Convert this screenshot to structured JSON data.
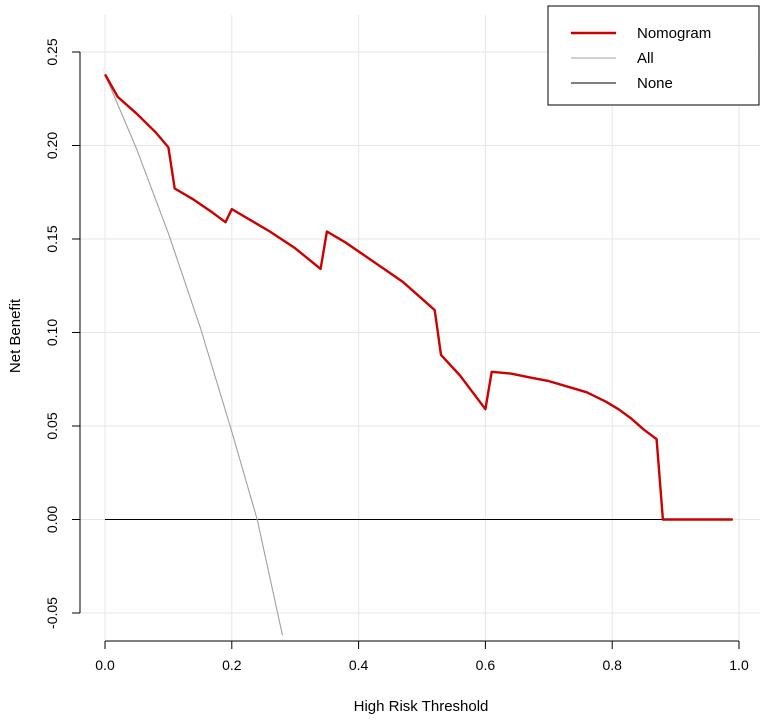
{
  "chart_data": {
    "type": "line",
    "xlabel": "High Risk Threshold",
    "ylabel": "Net Benefit",
    "xlim": [
      0.0,
      1.0
    ],
    "ylim": [
      -0.05,
      0.25
    ],
    "grid": true,
    "legend_position": "top-right",
    "x_ticks": [
      "0.0",
      "0.2",
      "0.4",
      "0.6",
      "0.8",
      "1.0"
    ],
    "y_ticks": [
      "-0.05",
      "0.00",
      "0.05",
      "0.10",
      "0.15",
      "0.20",
      "0.25"
    ],
    "series": [
      {
        "name": "Nomogram",
        "color": "#cc0000",
        "x": [
          0.0,
          0.02,
          0.05,
          0.08,
          0.1,
          0.11,
          0.14,
          0.17,
          0.19,
          0.2,
          0.23,
          0.26,
          0.3,
          0.34,
          0.35,
          0.38,
          0.41,
          0.44,
          0.47,
          0.5,
          0.52,
          0.53,
          0.56,
          0.6,
          0.61,
          0.64,
          0.67,
          0.7,
          0.73,
          0.76,
          0.79,
          0.81,
          0.83,
          0.85,
          0.87,
          0.88,
          0.9,
          0.95,
          0.99
        ],
        "y": [
          0.238,
          0.226,
          0.217,
          0.207,
          0.199,
          0.177,
          0.171,
          0.164,
          0.159,
          0.166,
          0.16,
          0.154,
          0.145,
          0.134,
          0.154,
          0.148,
          0.141,
          0.134,
          0.127,
          0.118,
          0.112,
          0.088,
          0.077,
          0.059,
          0.079,
          0.078,
          0.076,
          0.074,
          0.071,
          0.068,
          0.063,
          0.059,
          0.054,
          0.048,
          0.043,
          0.0,
          0.0,
          0.0,
          0.0
        ]
      },
      {
        "name": "All",
        "color": "#a0a0a0",
        "x": [
          0.0,
          0.05,
          0.1,
          0.15,
          0.2,
          0.24,
          0.28
        ],
        "y": [
          0.238,
          0.198,
          0.153,
          0.103,
          0.047,
          0.0,
          -0.062
        ]
      },
      {
        "name": "None",
        "color": "#000000",
        "x": [
          0.0,
          0.99
        ],
        "y": [
          0.0,
          0.0
        ]
      }
    ]
  }
}
